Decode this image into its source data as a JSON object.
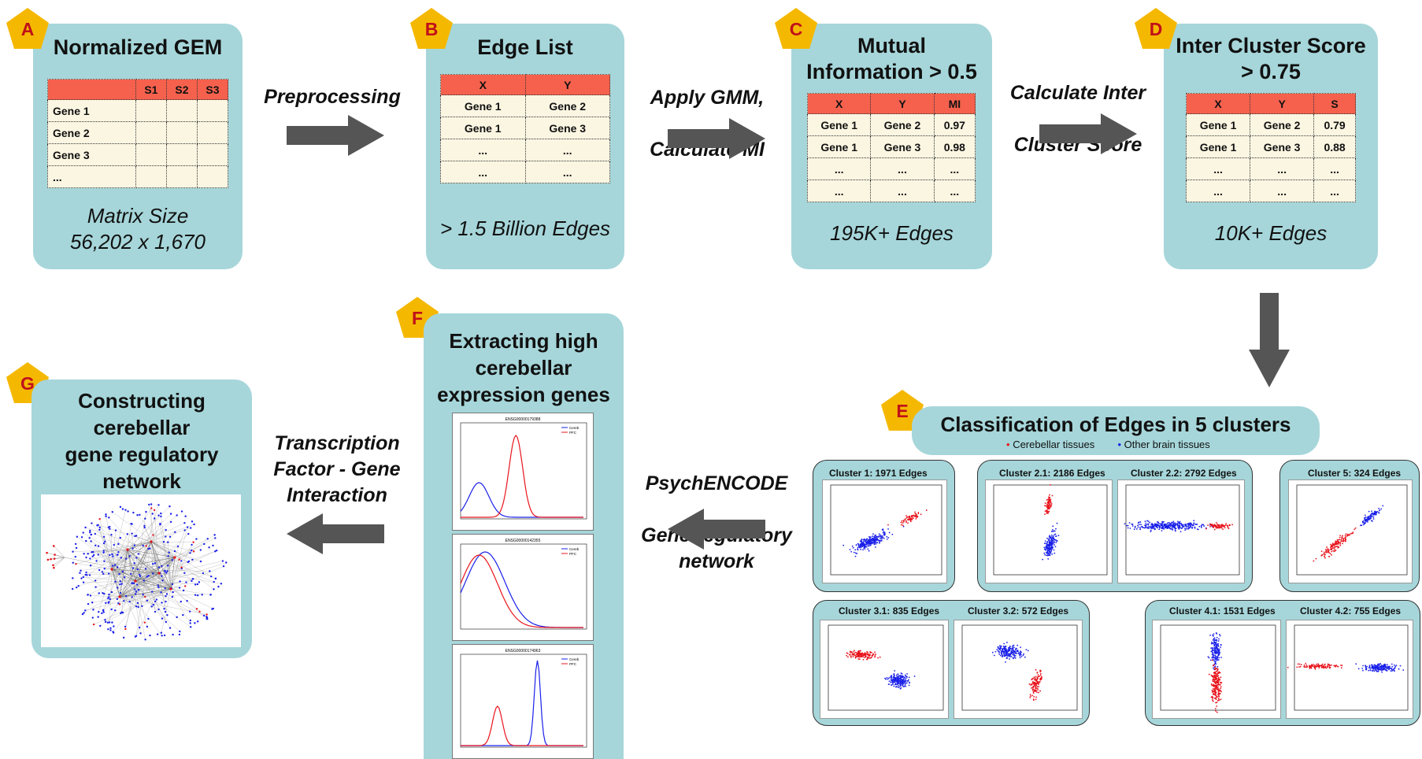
{
  "panels": {
    "A": {
      "badge": "A",
      "title": "Normalized GEM",
      "caption": "Matrix Size\n56,202 x 1,670",
      "headers": [
        "",
        "S1",
        "S2",
        "S3"
      ],
      "rows": [
        "Gene 1",
        "Gene 2",
        "Gene 3",
        "..."
      ]
    },
    "B": {
      "badge": "B",
      "title": "Edge List",
      "caption": "> 1.5 Billion Edges",
      "headers": [
        "X",
        "Y"
      ],
      "rows": [
        [
          "Gene 1",
          "Gene 2"
        ],
        [
          "Gene 1",
          "Gene 3"
        ],
        [
          "...",
          "..."
        ],
        [
          "...",
          "..."
        ]
      ]
    },
    "C": {
      "badge": "C",
      "title": "Mutual\nInformation > 0.5",
      "caption": "195K+ Edges",
      "headers": [
        "X",
        "Y",
        "MI"
      ],
      "rows": [
        [
          "Gene 1",
          "Gene 2",
          "0.97"
        ],
        [
          "Gene 1",
          "Gene 3",
          "0.98"
        ],
        [
          "...",
          "...",
          "..."
        ],
        [
          "...",
          "...",
          "..."
        ]
      ]
    },
    "D": {
      "badge": "D",
      "title": "Inter Cluster Score\n> 0.75",
      "caption": "10K+ Edges",
      "headers": [
        "X",
        "Y",
        "S"
      ],
      "rows": [
        [
          "Gene 1",
          "Gene 2",
          "0.79"
        ],
        [
          "Gene 1",
          "Gene 3",
          "0.88"
        ],
        [
          "...",
          "...",
          "..."
        ],
        [
          "...",
          "...",
          "..."
        ]
      ]
    },
    "E": {
      "badge": "E",
      "title": "Classification of Edges in 5 clusters",
      "legend": [
        {
          "label": "Cerebellar tissues",
          "color": "#e8141c"
        },
        {
          "label": "Other brain tissues",
          "color": "#1a20e8"
        }
      ]
    },
    "F": {
      "badge": "F",
      "title": "Extracting high\ncerebellar\nexpression genes",
      "plots": [
        {
          "title": "ENSG00000179388",
          "legend": [
            "Cereb",
            "PFC"
          ]
        },
        {
          "title": "ENSG00000142355",
          "legend": [
            "Cereb",
            "PFC"
          ]
        },
        {
          "title": "ENSG00000174963",
          "legend": [
            "Cereb",
            "PFC"
          ]
        }
      ]
    },
    "G": {
      "badge": "G",
      "title": "Constructing\ncerebellar\ngene regulatory\nnetwork"
    }
  },
  "arrows": {
    "ab": "Preprocessing",
    "bc": "Apply GMM,\n\nCalculate MI",
    "cd": "Calculate Inter\n\nCluster Score",
    "ef": "PsychENCODE\n\nGene regulatory\nnetwork",
    "fg": "Transcription\nFactor - Gene\nInteraction"
  },
  "clusters": {
    "c1": "Cluster 1: 1971 Edges",
    "c21": "Cluster 2.1: 2186 Edges",
    "c22": "Cluster 2.2: 2792 Edges",
    "c5": "Cluster 5: 324 Edges",
    "c31": "Cluster 3.1: 835 Edges",
    "c32": "Cluster 3.2: 572 Edges",
    "c41": "Cluster 4.1: 1531 Edges",
    "c42": "Cluster 4.2: 755 Edges"
  },
  "colors": {
    "panel": "#a6d6da",
    "header": "#f5614d",
    "table": "#fbf6e2",
    "badge": "#f5b800",
    "arrow": "#555555",
    "red": "#e8141c",
    "blue": "#1a20e8"
  }
}
